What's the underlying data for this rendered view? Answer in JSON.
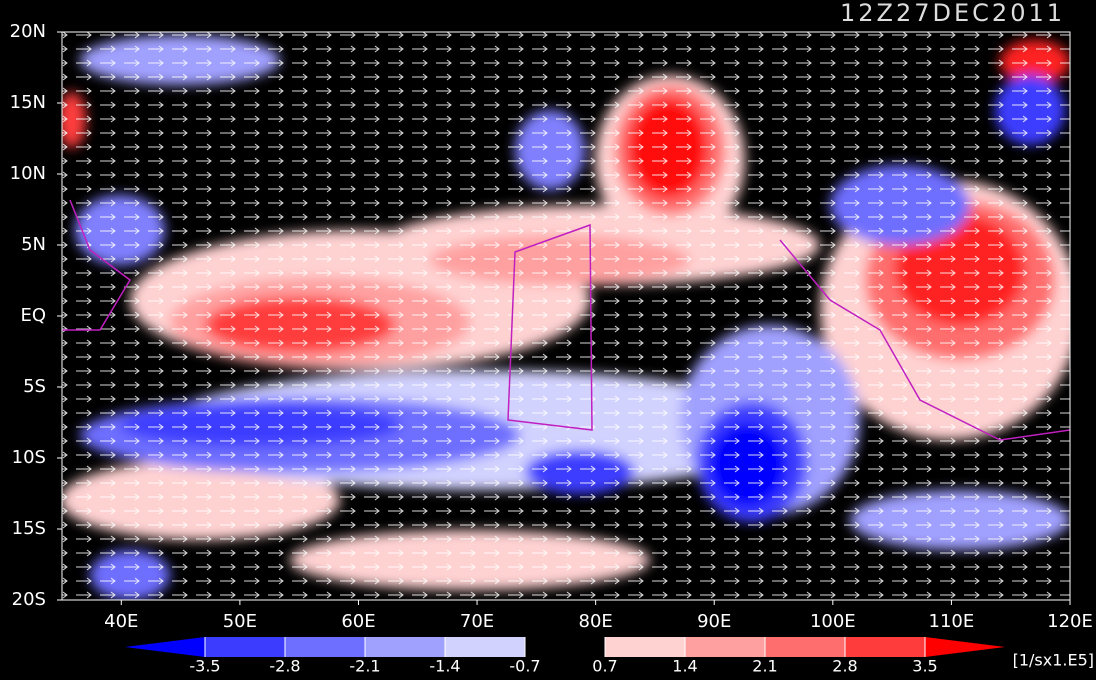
{
  "map": {
    "title": "12Z27DEC2011",
    "xlim": [
      35,
      120
    ],
    "ylim": [
      -20,
      20
    ],
    "xticks": [
      {
        "value": 40,
        "label": "40E"
      },
      {
        "value": 50,
        "label": "50E"
      },
      {
        "value": 60,
        "label": "60E"
      },
      {
        "value": 70,
        "label": "70E"
      },
      {
        "value": 80,
        "label": "80E"
      },
      {
        "value": 90,
        "label": "90E"
      },
      {
        "value": 100,
        "label": "100E"
      },
      {
        "value": 110,
        "label": "110E"
      },
      {
        "value": 120,
        "label": "120E"
      }
    ],
    "yticks": [
      {
        "value": 20,
        "label": "20N"
      },
      {
        "value": 15,
        "label": "15N"
      },
      {
        "value": 10,
        "label": "10N"
      },
      {
        "value": 5,
        "label": "5N"
      },
      {
        "value": 0,
        "label": "EQ"
      },
      {
        "value": -5,
        "label": "5S"
      },
      {
        "value": -10,
        "label": "10S"
      },
      {
        "value": -15,
        "label": "15S"
      },
      {
        "value": -20,
        "label": "20S"
      }
    ],
    "colorbar": {
      "levels": [
        -3.5,
        -2.8,
        -2.1,
        -1.4,
        -0.7,
        0.7,
        1.4,
        2.1,
        2.8,
        3.5
      ],
      "colors": [
        "#0000ff",
        "#3c3cff",
        "#6e6eff",
        "#a0a0ff",
        "#d2d2ff",
        "#000000",
        "#ffd2d2",
        "#ffa0a0",
        "#ff6e6e",
        "#ff3c3c",
        "#ff0000"
      ],
      "unit": "[1/sx1.E5]"
    }
  }
}
